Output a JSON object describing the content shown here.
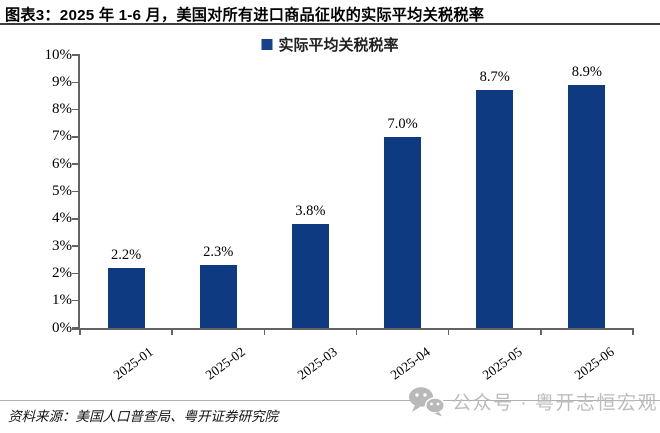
{
  "figure": {
    "title": "图表3：2025 年 1-6 月，美国对所有进口商品征收的实际平均关税税率",
    "source": "资料来源：美国人口普查局、粤开证券研究院",
    "watermark": "公众号 · 粤开志恒宏观"
  },
  "chart_data": {
    "type": "bar",
    "title": "2025 年 1-6 月，美国对所有进口商品征收的实际平均关税税率",
    "categories": [
      "2025-01",
      "2025-02",
      "2025-03",
      "2025-04",
      "2025-05",
      "2025-06"
    ],
    "series": [
      {
        "name": "实际平均关税税率",
        "values": [
          2.2,
          2.3,
          3.8,
          7.0,
          8.7,
          8.9
        ]
      }
    ],
    "data_labels": [
      "2.2%",
      "2.3%",
      "3.8%",
      "7.0%",
      "8.7%",
      "8.9%"
    ],
    "xlabel": "",
    "ylabel": "",
    "ylim": [
      0,
      10
    ],
    "ytick_step": 1,
    "ytick_labels": [
      "0%",
      "1%",
      "2%",
      "3%",
      "4%",
      "5%",
      "6%",
      "7%",
      "8%",
      "9%",
      "10%"
    ],
    "grid": false,
    "legend_position": "top-center",
    "colors": {
      "bar": "#0d3a80",
      "legend_swatch": "#16418c",
      "axis": "#636363",
      "title_rule": "#3d3d3d",
      "watermark": "#bcbcbc"
    }
  }
}
